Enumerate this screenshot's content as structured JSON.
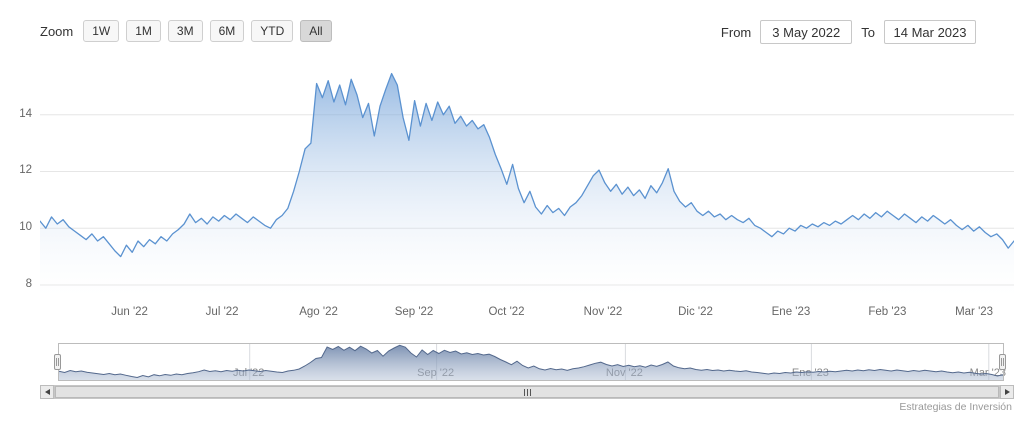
{
  "range_selector": {
    "zoom_label": "Zoom",
    "buttons": [
      {
        "label": "1W",
        "selected": false
      },
      {
        "label": "1M",
        "selected": false
      },
      {
        "label": "3M",
        "selected": false
      },
      {
        "label": "6M",
        "selected": false
      },
      {
        "label": "YTD",
        "selected": false
      },
      {
        "label": "All",
        "selected": true
      }
    ],
    "from_label": "From",
    "from_value": "3 May 2022",
    "to_label": "To",
    "to_value": "14 Mar 2023"
  },
  "credit": "Estrategias de Inversión",
  "chart_data": {
    "type": "area",
    "title": "",
    "xlabel": "",
    "ylabel": "",
    "x_range": [
      "3 May 2022",
      "14 Mar 2023"
    ],
    "ylim": [
      7.47,
      15.93
    ],
    "y_ticks": [
      8,
      10,
      12,
      14
    ],
    "grid": "horizontal",
    "legend": "none",
    "x_ticks": [
      {
        "label": "Jun '22",
        "pos": 0.092
      },
      {
        "label": "Jul '22",
        "pos": 0.187
      },
      {
        "label": "Ago '22",
        "pos": 0.286
      },
      {
        "label": "Sep '22",
        "pos": 0.384
      },
      {
        "label": "Oct '22",
        "pos": 0.479
      },
      {
        "label": "Nov '22",
        "pos": 0.578
      },
      {
        "label": "Dic '22",
        "pos": 0.673
      },
      {
        "label": "Ene '23",
        "pos": 0.771
      },
      {
        "label": "Feb '23",
        "pos": 0.87
      },
      {
        "label": "Mar '23",
        "pos": 0.959
      }
    ],
    "navigator_ticks": [
      {
        "label": "Jul '22",
        "pos": 0.202
      },
      {
        "label": "Sep '22",
        "pos": 0.4
      },
      {
        "label": "Nov '22",
        "pos": 0.6
      },
      {
        "label": "Ene '23",
        "pos": 0.797
      },
      {
        "label": "Mar '23",
        "pos": 0.985
      }
    ],
    "series": [
      {
        "values": [
          10.25,
          10.0,
          10.4,
          10.15,
          10.3,
          10.05,
          9.9,
          9.75,
          9.6,
          9.8,
          9.55,
          9.7,
          9.45,
          9.2,
          9.0,
          9.4,
          9.15,
          9.55,
          9.35,
          9.6,
          9.45,
          9.7,
          9.55,
          9.8,
          9.95,
          10.15,
          10.5,
          10.2,
          10.35,
          10.15,
          10.4,
          10.25,
          10.45,
          10.3,
          10.5,
          10.35,
          10.2,
          10.4,
          10.25,
          10.1,
          10.0,
          10.3,
          10.45,
          10.7,
          11.3,
          12.0,
          12.8,
          13.0,
          15.1,
          14.6,
          15.2,
          14.45,
          15.05,
          14.35,
          15.25,
          14.7,
          13.9,
          14.4,
          13.25,
          14.3,
          14.9,
          15.45,
          15.05,
          13.9,
          13.1,
          14.5,
          13.6,
          14.4,
          13.8,
          14.45,
          14.0,
          14.3,
          13.7,
          13.95,
          13.6,
          13.8,
          13.5,
          13.65,
          13.2,
          12.6,
          12.1,
          11.55,
          12.25,
          11.4,
          10.9,
          11.3,
          10.75,
          10.5,
          10.8,
          10.55,
          10.7,
          10.45,
          10.75,
          10.9,
          11.15,
          11.5,
          11.85,
          12.05,
          11.6,
          11.3,
          11.55,
          11.2,
          11.45,
          11.15,
          11.35,
          11.05,
          11.5,
          11.25,
          11.6,
          12.1,
          11.3,
          10.95,
          10.75,
          10.9,
          10.6,
          10.45,
          10.6,
          10.4,
          10.5,
          10.3,
          10.45,
          10.3,
          10.2,
          10.35,
          10.1,
          10.0,
          9.85,
          9.7,
          9.9,
          9.8,
          10.0,
          9.9,
          10.1,
          10.0,
          10.15,
          10.05,
          10.2,
          10.1,
          10.25,
          10.15,
          10.3,
          10.45,
          10.3,
          10.5,
          10.35,
          10.55,
          10.4,
          10.6,
          10.45,
          10.3,
          10.5,
          10.35,
          10.2,
          10.4,
          10.25,
          10.45,
          10.3,
          10.15,
          10.3,
          10.1,
          9.95,
          10.1,
          9.9,
          10.05,
          9.85,
          9.7,
          9.8,
          9.6,
          9.3,
          9.55
        ]
      }
    ],
    "colors": {
      "line": "#5b92d0",
      "area_top": "rgba(97,150,212,0.65)",
      "area_bottom": "rgba(255,255,255,0.05)",
      "grid": "#e6e6e6",
      "nav_line": "#53688c",
      "nav_area_top": "rgba(104,128,166,0.85)",
      "nav_area_bottom": "rgba(170,185,208,0.45)"
    }
  }
}
